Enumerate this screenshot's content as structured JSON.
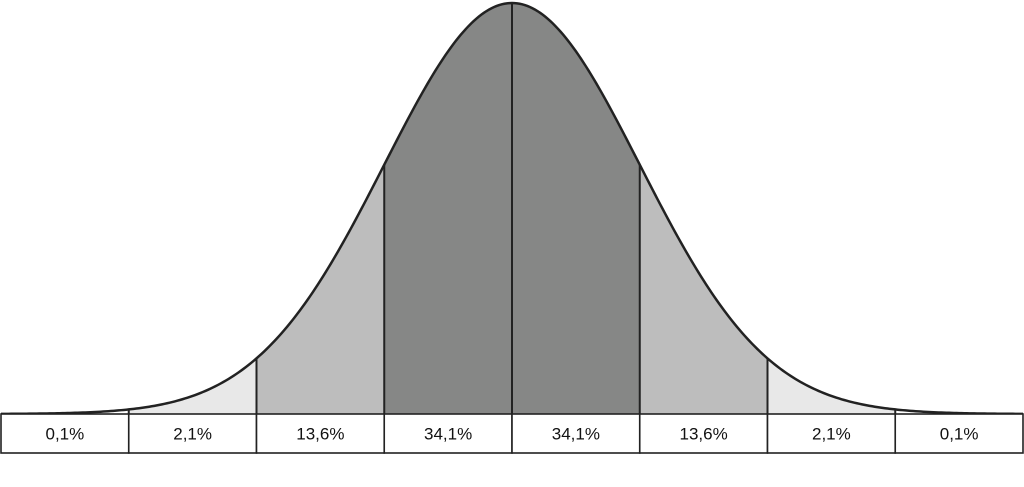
{
  "chart_data": {
    "type": "area",
    "title": "",
    "xlabel": "",
    "ylabel": "",
    "distribution": "normal",
    "categories": [
      "0,1%",
      "2,1%",
      "13,6%",
      "34,1%",
      "34,1%",
      "13,6%",
      "2,1%",
      "0,1%"
    ],
    "values": [
      0.1,
      2.1,
      13.6,
      34.1,
      34.1,
      13.6,
      2.1,
      0.1
    ],
    "unit": "%",
    "sigma_bounds": [
      -4,
      -3,
      -2,
      -1,
      0,
      1,
      2,
      3,
      4
    ],
    "band_colors": [
      "#ffffff",
      "#e8e8e8",
      "#bdbdbd",
      "#868786",
      "#868786",
      "#bdbdbd",
      "#e8e8e8",
      "#ffffff"
    ],
    "outline_color": "#222222",
    "grid": false,
    "legend": "none"
  }
}
